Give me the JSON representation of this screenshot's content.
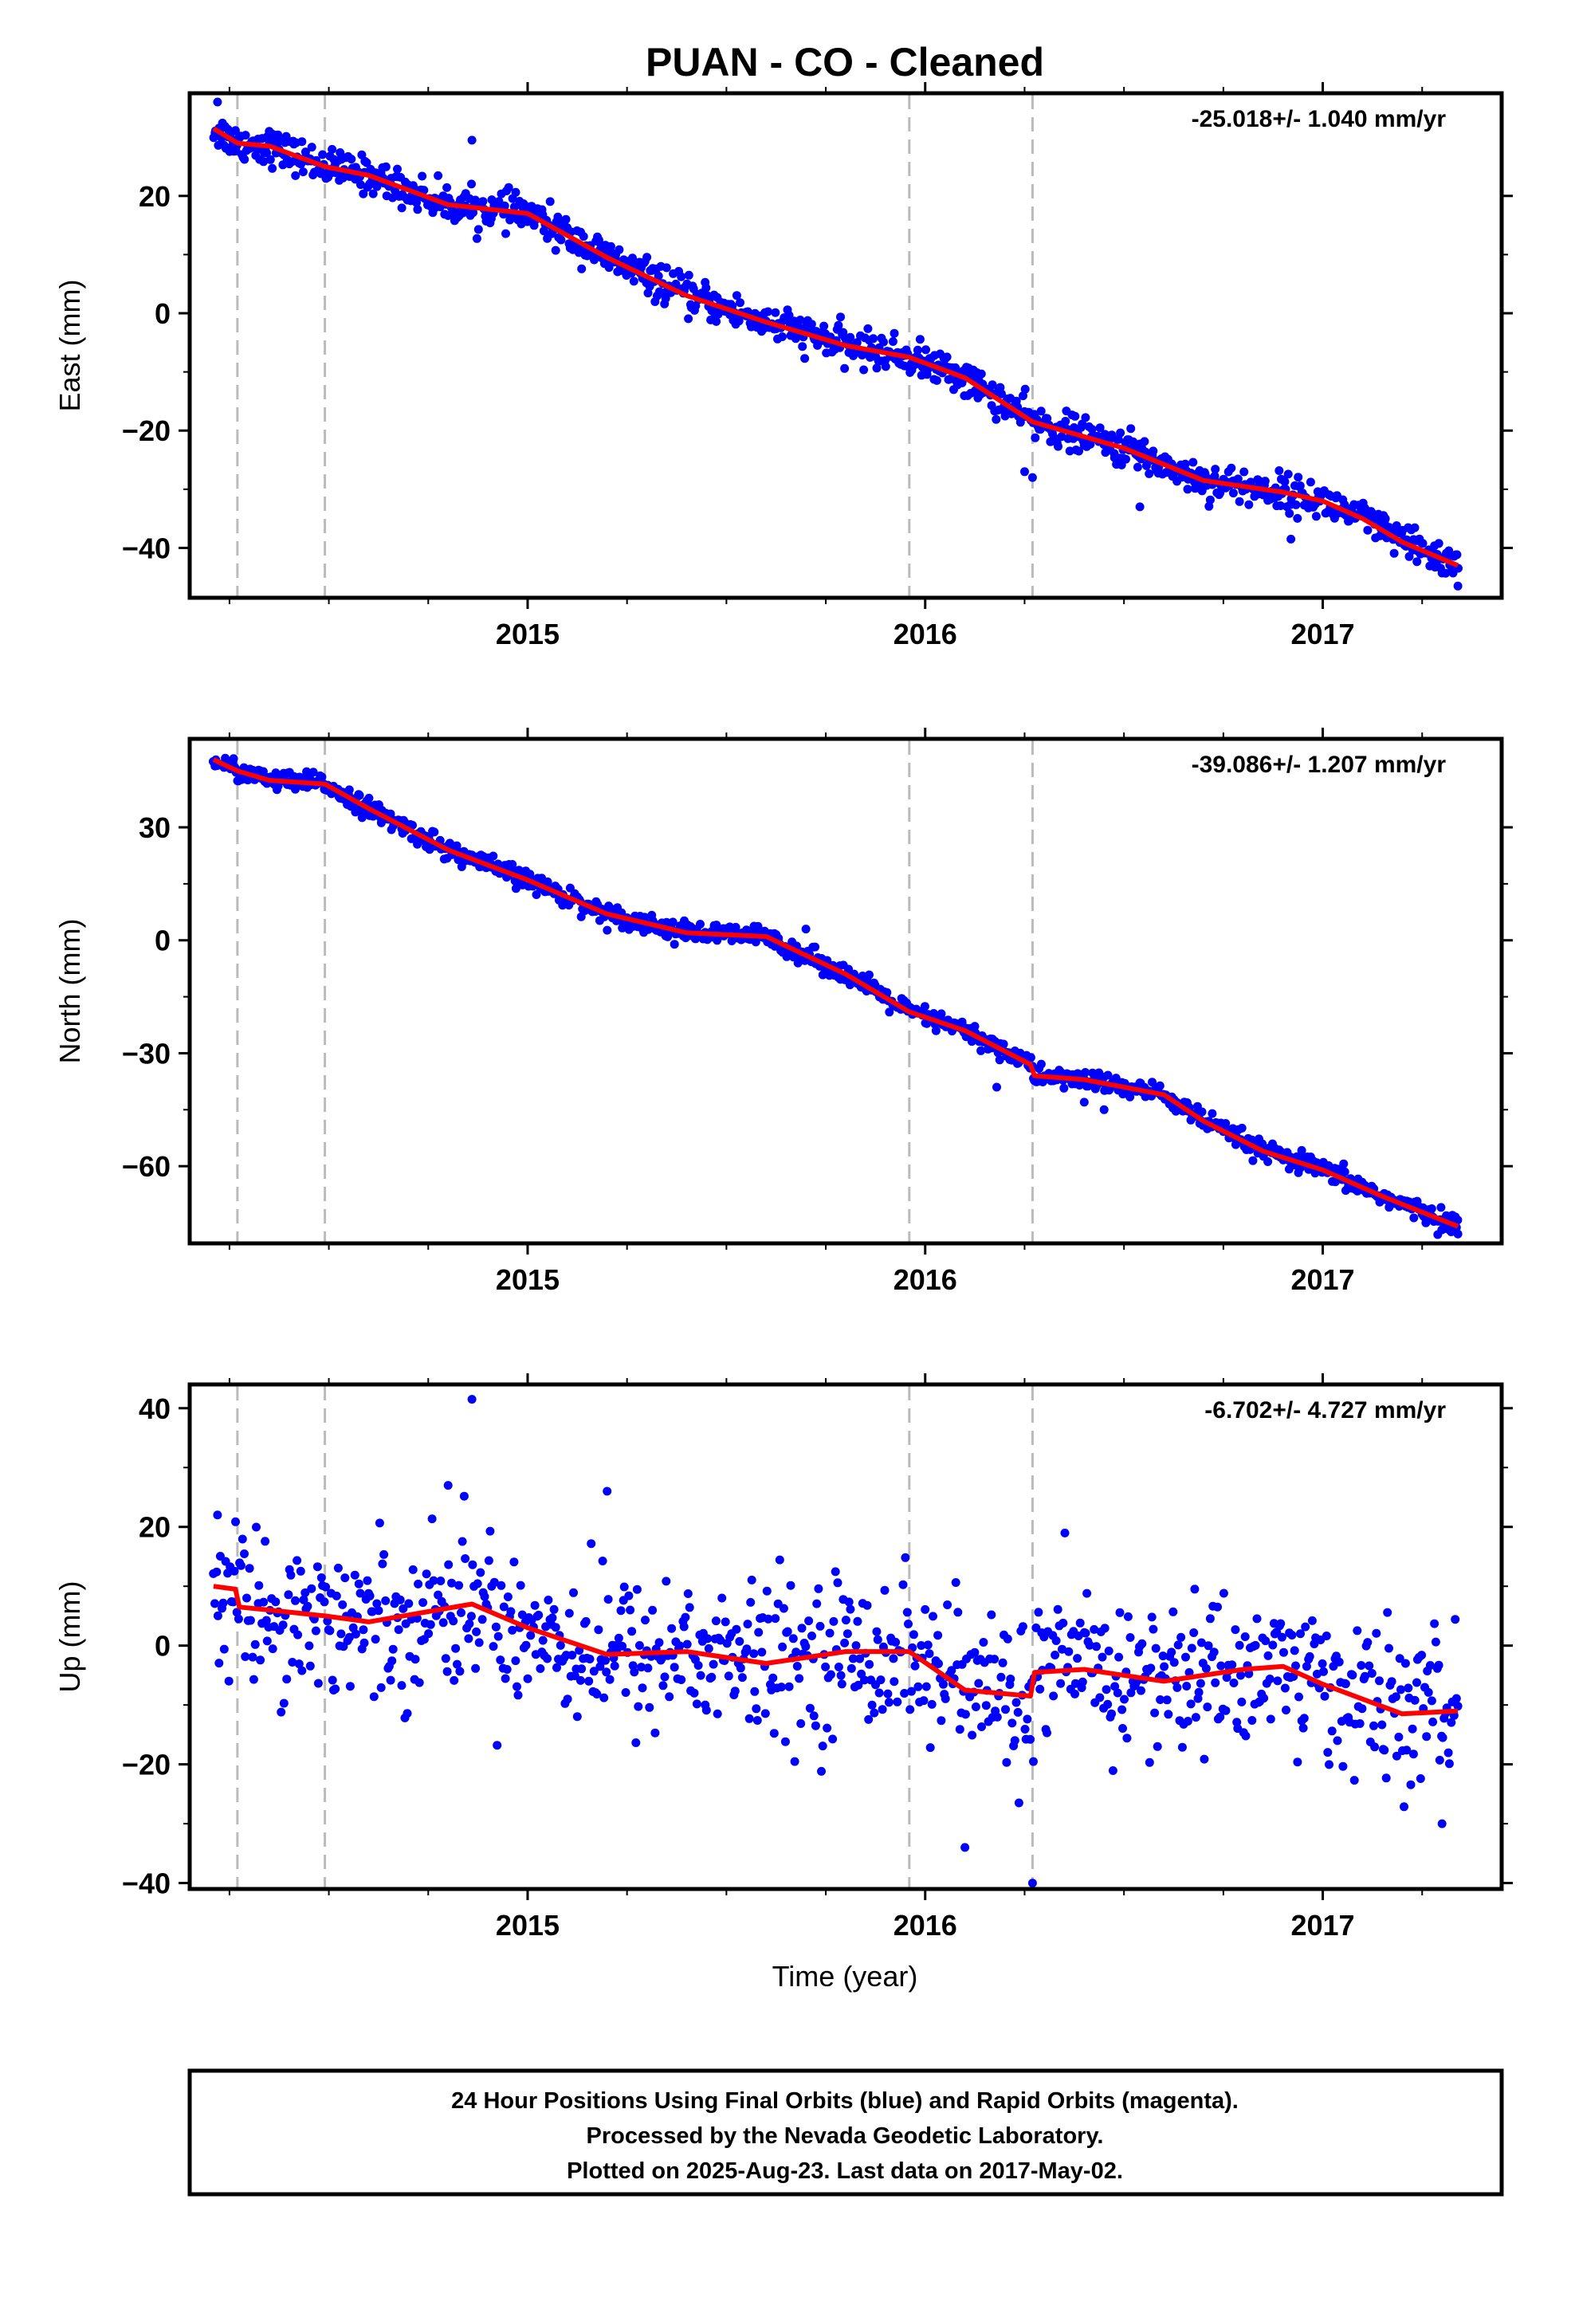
{
  "title": "PUAN  - CO - Cleaned",
  "x_label": "Time (year)",
  "footer": {
    "lines": [
      "24 Hour Positions Using Final Orbits (blue) and Rapid Orbits (magenta).",
      "Processed by the Nevada Geodetic Laboratory.",
      "Plotted on 2025-Aug-23. Last data on 2017-May-02."
    ]
  },
  "colors": {
    "points": "#0000ff",
    "model": "#ff0000",
    "event_lines": "#bbbbbb",
    "frame": "#000000"
  },
  "chart_data": [
    {
      "type": "scatter",
      "ylabel": "East (mm)",
      "rate_label": "-25.018+/- 1.040 mm/yr",
      "xlim": [
        2014.15,
        2017.45
      ],
      "ylim": [
        -48.5,
        37.5
      ],
      "xticks": [
        2015,
        2016,
        2017
      ],
      "xtick_labels": [
        "2015",
        "2016",
        "2017"
      ],
      "yticks": [
        -40,
        -20,
        0,
        20
      ],
      "ytick_labels": [
        "−40",
        "−20",
        "0",
        "20"
      ],
      "event_lines": [
        2014.27,
        2014.49,
        2015.96,
        2016.27
      ],
      "data_range": [
        2014.21,
        2017.34
      ],
      "model": {
        "x": [
          2014.21,
          2014.27,
          2014.35,
          2014.49,
          2014.6,
          2014.8,
          2015.0,
          2015.2,
          2015.4,
          2015.6,
          2015.8,
          2015.96,
          2016.1,
          2016.27,
          2016.5,
          2016.7,
          2016.9,
          2017.0,
          2017.1,
          2017.2,
          2017.34
        ],
        "y": [
          31.5,
          29.0,
          28.5,
          25.0,
          23.5,
          18.5,
          17.0,
          9.5,
          3.0,
          -1.5,
          -5.5,
          -7.5,
          -11.0,
          -18.5,
          -23.0,
          -28.5,
          -30.5,
          -32.0,
          -35.0,
          -39.0,
          -43.0
        ]
      },
      "noise": 1.5,
      "outliers": [
        [
          2014.86,
          29.5
        ],
        [
          2016.27,
          -28.0
        ],
        [
          2016.25,
          -27.0
        ],
        [
          2016.54,
          -33.0
        ],
        [
          2016.92,
          -38.5
        ],
        [
          2017.34,
          -46.5
        ],
        [
          2014.22,
          36.0
        ],
        [
          2014.35,
          31.0
        ]
      ]
    },
    {
      "type": "scatter",
      "ylabel": "North (mm)",
      "rate_label": "-39.086+/- 1.207 mm/yr",
      "xlim": [
        2014.15,
        2017.45
      ],
      "ylim": [
        -80.5,
        53.5
      ],
      "xticks": [
        2015,
        2016,
        2017
      ],
      "xtick_labels": [
        "2015",
        "2016",
        "2017"
      ],
      "yticks": [
        -60,
        -30,
        0,
        30
      ],
      "ytick_labels": [
        "−60",
        "−30",
        "0",
        "30"
      ],
      "event_lines": [
        2014.27,
        2014.49,
        2015.96,
        2016.27
      ],
      "data_range": [
        2014.21,
        2017.34
      ],
      "model": {
        "x": [
          2014.21,
          2014.27,
          2014.35,
          2014.49,
          2014.6,
          2014.8,
          2015.0,
          2015.2,
          2015.4,
          2015.6,
          2015.8,
          2015.96,
          2016.1,
          2016.265,
          2016.275,
          2016.4,
          2016.6,
          2016.7,
          2016.85,
          2017.0,
          2017.15,
          2017.34
        ],
        "y": [
          48.0,
          45.0,
          42.5,
          41.5,
          35.0,
          24.0,
          16.0,
          7.0,
          2.0,
          1.0,
          -9.0,
          -19.0,
          -24.0,
          -33.0,
          -36.0,
          -37.0,
          -41.0,
          -48.0,
          -56.0,
          -61.0,
          -68.0,
          -76.0
        ]
      },
      "noise": 1.3,
      "outliers": [
        [
          2016.4,
          -43.0
        ],
        [
          2016.45,
          -45.0
        ],
        [
          2017.34,
          -78.0
        ],
        [
          2015.7,
          3.0
        ],
        [
          2016.18,
          -39.0
        ]
      ]
    },
    {
      "type": "scatter",
      "ylabel": "Up (mm)",
      "rate_label": "-6.702+/- 4.727 mm/yr",
      "xlim": [
        2014.15,
        2017.45
      ],
      "ylim": [
        -41,
        44
      ],
      "xticks": [
        2015,
        2016,
        2017
      ],
      "xtick_labels": [
        "2015",
        "2016",
        "2017"
      ],
      "yticks": [
        -40,
        -20,
        0,
        20,
        40
      ],
      "ytick_labels": [
        "−40",
        "−20",
        "0",
        "20",
        "40"
      ],
      "event_lines": [
        2014.27,
        2014.49,
        2015.96,
        2016.27
      ],
      "data_range": [
        2014.21,
        2017.34
      ],
      "model": {
        "x": [
          2014.21,
          2014.265,
          2014.275,
          2014.35,
          2014.49,
          2014.6,
          2014.86,
          2015.0,
          2015.2,
          2015.4,
          2015.6,
          2015.8,
          2015.96,
          2016.1,
          2016.265,
          2016.275,
          2016.4,
          2016.6,
          2016.8,
          2016.9,
          2017.0,
          2017.2,
          2017.34
        ],
        "y": [
          10.0,
          9.5,
          6.5,
          6.0,
          5.0,
          4.0,
          7.0,
          3.0,
          -1.5,
          -1.0,
          -3.0,
          -1.0,
          -1.0,
          -7.5,
          -8.5,
          -4.5,
          -4.0,
          -6.0,
          -4.0,
          -3.5,
          -6.5,
          -11.5,
          -11.0
        ]
      },
      "noise": 6.5,
      "outliers": [
        [
          2014.86,
          41.5
        ],
        [
          2016.27,
          -40.0
        ],
        [
          2014.22,
          22.0
        ],
        [
          2015.2,
          26.0
        ],
        [
          2014.8,
          27.0
        ],
        [
          2016.1,
          -34.0
        ],
        [
          2017.3,
          -30.0
        ]
      ]
    }
  ]
}
